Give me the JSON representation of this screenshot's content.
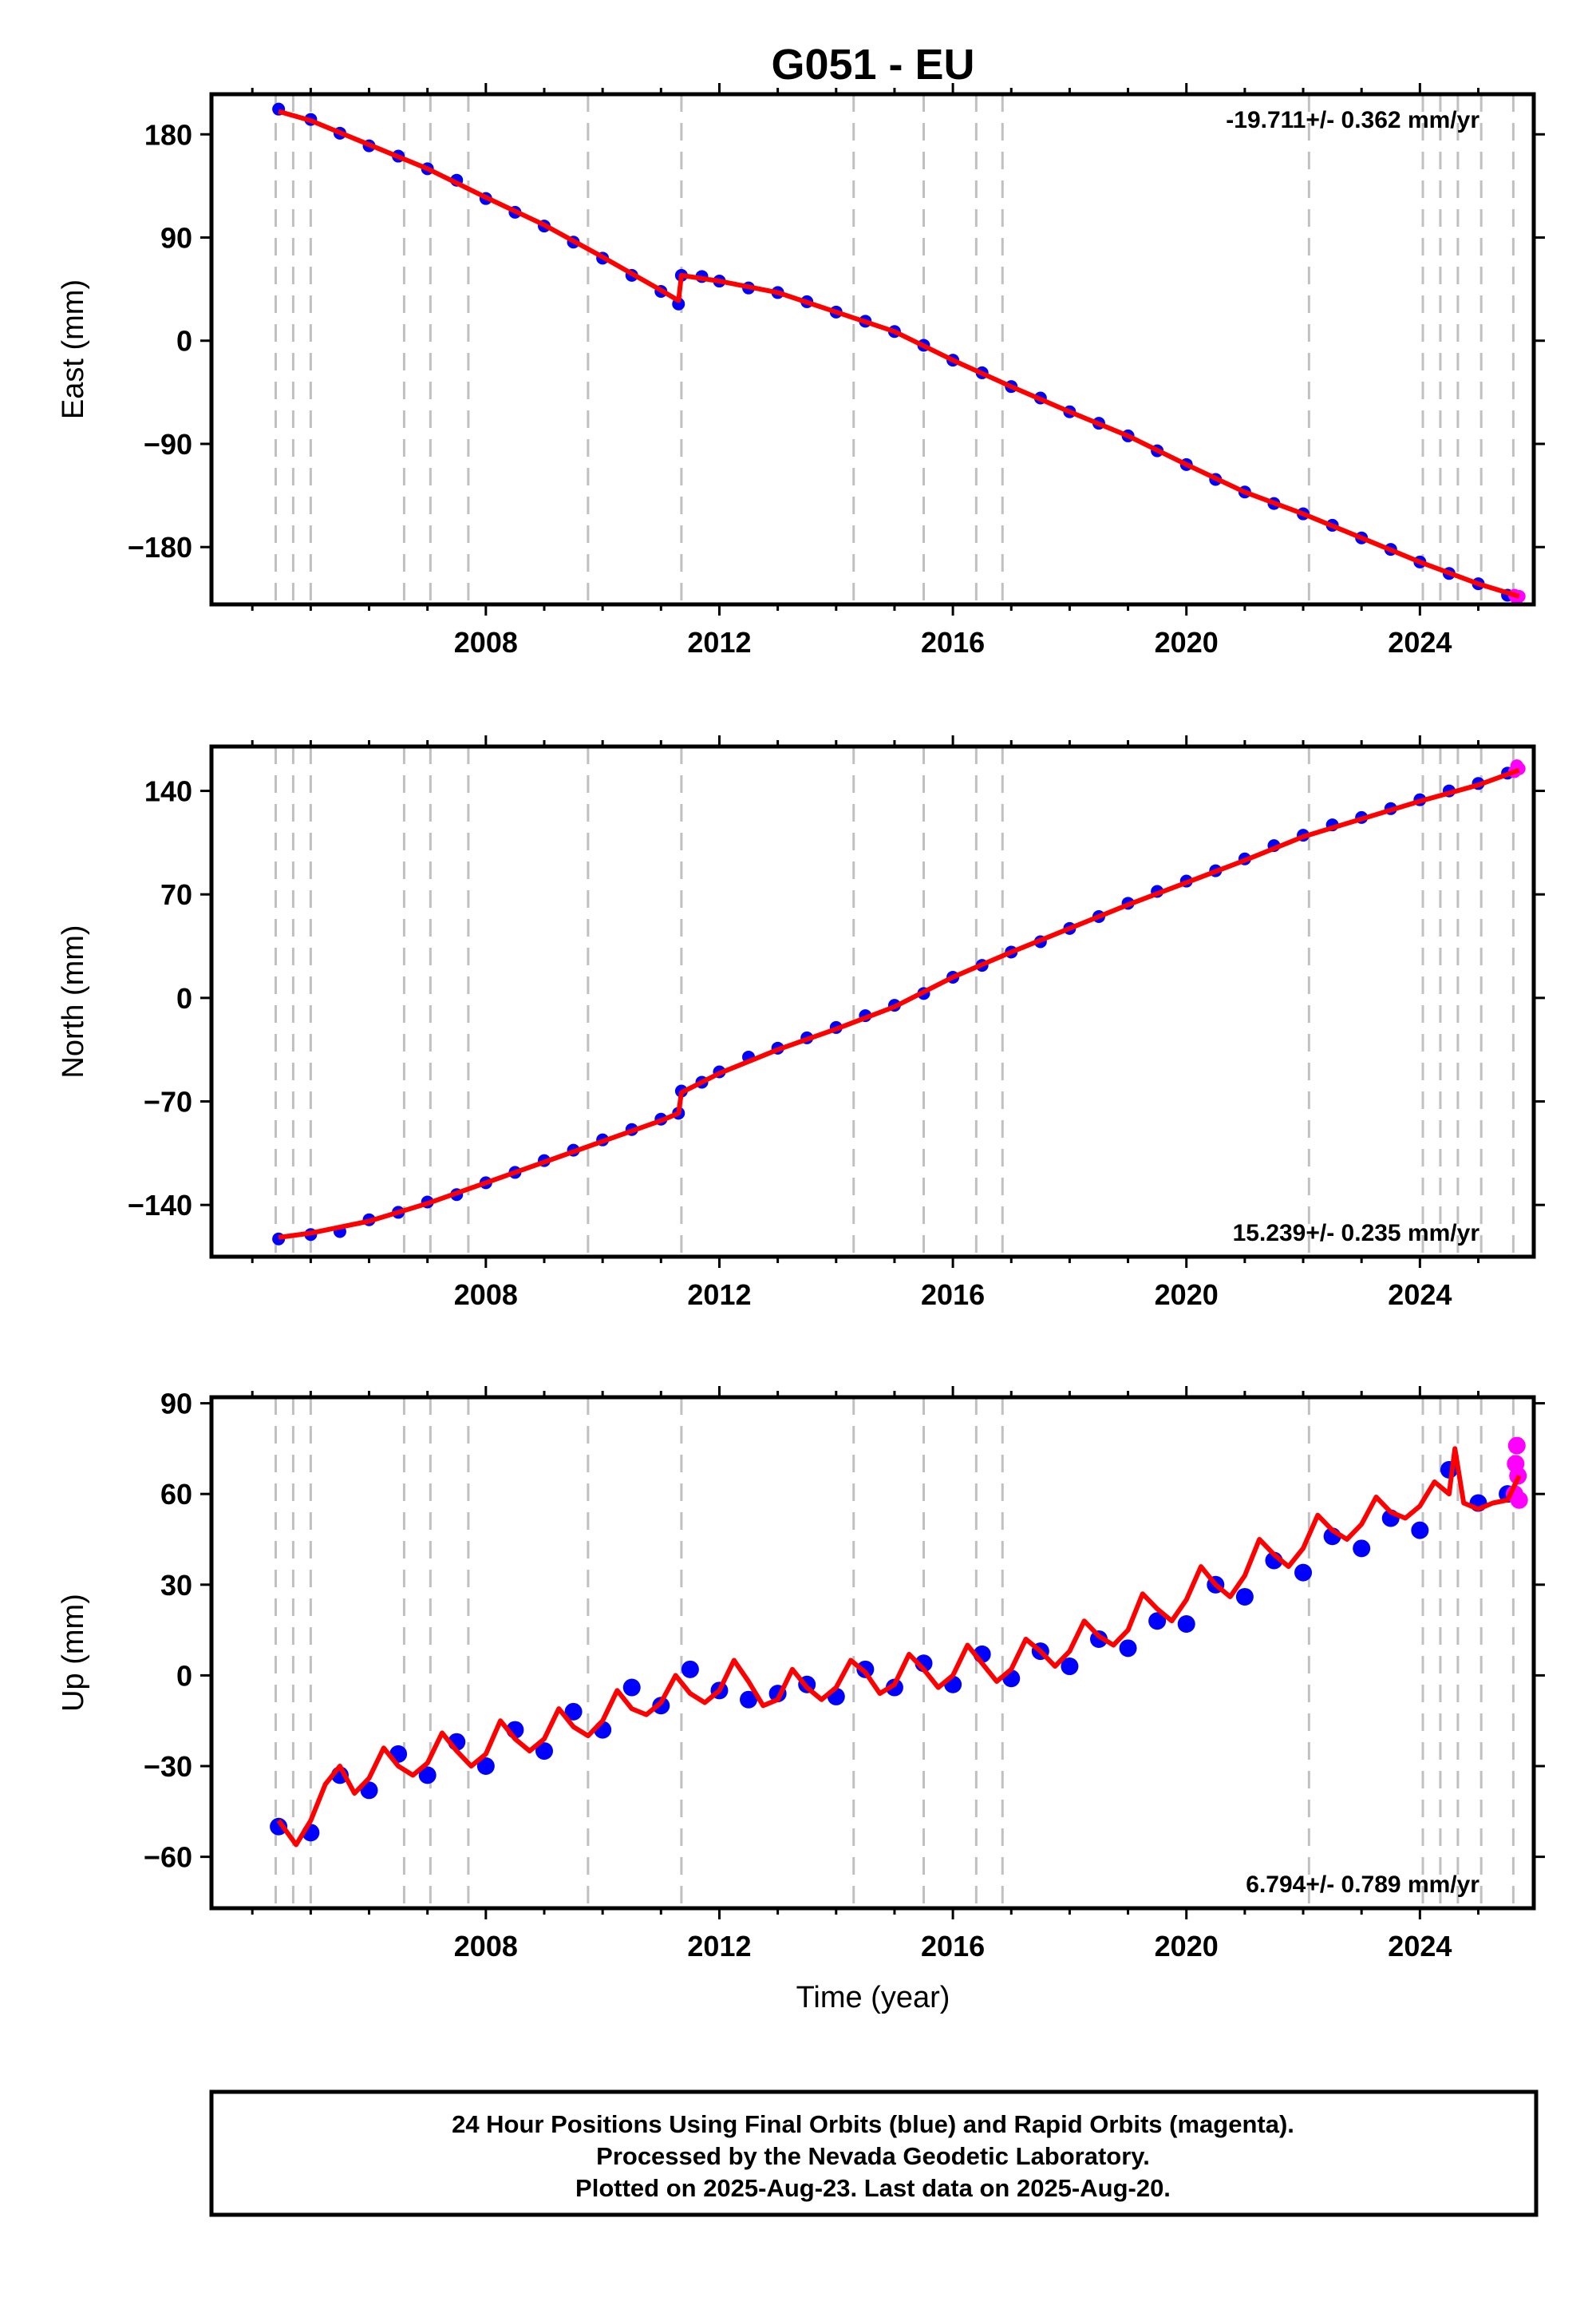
{
  "figure": {
    "title": "G051 - EU",
    "x_label": "Time (year)",
    "footer": [
      "24 Hour Positions Using Final Orbits (blue) and Rapid Orbits (magenta).",
      "Processed by the Nevada Geodetic Laboratory.",
      "Plotted on 2025-Aug-23. Last data on 2025-Aug-20."
    ]
  },
  "colors": {
    "final_orbit_points": "#0000ff",
    "rapid_orbit_points": "#ff00ff",
    "model_fit": "#ff0000",
    "event_lines": "#c0c0c0",
    "frame": "#000000"
  },
  "chart_data": [
    {
      "type": "scatter",
      "ylabel": "East (mm)",
      "xlabel": "",
      "xlim": [
        2003.3,
        2025.95
      ],
      "ylim": [
        -230,
        215
      ],
      "yticks": [
        180,
        90,
        0,
        -90,
        -180
      ],
      "xticks": [
        2008,
        2012,
        2016,
        2020,
        2024
      ],
      "rate_text": "-19.711+/- 0.362 mm/yr",
      "rate_position": "top-right",
      "grid": false,
      "event_lines": [
        2004.4,
        2004.7,
        2005.0,
        2006.6,
        2007.05,
        2007.7,
        2009.75,
        2011.35,
        2014.3,
        2015.5,
        2016.4,
        2016.85,
        2022.1,
        2024.05,
        2024.35,
        2024.65,
        2025.05,
        2025.6
      ],
      "series": [
        {
          "name": "Final Orbits",
          "color": "#0000ff",
          "x": [
            2004.45,
            2005.0,
            2005.5,
            2006.0,
            2006.5,
            2007.0,
            2007.5,
            2008.0,
            2008.5,
            2009.0,
            2009.5,
            2010.0,
            2010.5,
            2011.0,
            2011.3,
            2011.35,
            2011.7,
            2012.0,
            2012.5,
            2013.0,
            2013.5,
            2014.0,
            2014.5,
            2015.0,
            2015.5,
            2016.0,
            2016.5,
            2017.0,
            2017.5,
            2018.0,
            2018.5,
            2019.0,
            2019.5,
            2020.0,
            2020.5,
            2021.0,
            2021.5,
            2022.0,
            2022.5,
            2023.0,
            2023.5,
            2024.0,
            2024.5,
            2025.0,
            2025.5
          ],
          "y": [
            202,
            193,
            181,
            170,
            161,
            150,
            140,
            124,
            112,
            100,
            86,
            72,
            57,
            43,
            32,
            57,
            56,
            52,
            46,
            42,
            34,
            25,
            17,
            8,
            -4,
            -17,
            -28,
            -40,
            -50,
            -62,
            -72,
            -83,
            -96,
            -108,
            -121,
            -132,
            -142,
            -151,
            -161,
            -172,
            -182,
            -193,
            -203,
            -212,
            -222
          ]
        },
        {
          "name": "Rapid Orbits",
          "color": "#ff00ff",
          "x": [
            2025.62,
            2025.66,
            2025.7
          ],
          "y": [
            -222,
            -225,
            -223
          ]
        }
      ],
      "fit": {
        "color": "#ff0000",
        "x": [
          2004.45,
          2005.0,
          2006.0,
          2007.0,
          2008.0,
          2009.0,
          2010.0,
          2011.0,
          2011.3,
          2011.35,
          2012.0,
          2013.0,
          2014.0,
          2015.0,
          2016.0,
          2017.0,
          2018.0,
          2019.0,
          2020.0,
          2021.0,
          2022.0,
          2023.0,
          2024.0,
          2025.0,
          2025.7
        ],
        "y": [
          200,
          192,
          171,
          150,
          125,
          101,
          73,
          44,
          35,
          57,
          52,
          42,
          25,
          8,
          -17,
          -40,
          -62,
          -83,
          -108,
          -132,
          -151,
          -172,
          -193,
          -212,
          -223
        ]
      }
    },
    {
      "type": "scatter",
      "ylabel": "North (mm)",
      "xlabel": "",
      "xlim": [
        2003.3,
        2025.95
      ],
      "ylim": [
        -175,
        170
      ],
      "yticks": [
        140,
        70,
        0,
        -70,
        -140
      ],
      "xticks": [
        2008,
        2012,
        2016,
        2020,
        2024
      ],
      "rate_text": "15.239+/- 0.235 mm/yr",
      "rate_position": "bottom-right",
      "grid": false,
      "event_lines": [
        2004.4,
        2004.7,
        2005.0,
        2006.6,
        2007.05,
        2007.7,
        2009.75,
        2011.35,
        2014.3,
        2015.5,
        2016.4,
        2016.85,
        2022.1,
        2024.05,
        2024.35,
        2024.65,
        2025.05,
        2025.6
      ],
      "series": [
        {
          "name": "Final Orbits",
          "color": "#0000ff",
          "x": [
            2004.45,
            2005.0,
            2005.5,
            2006.0,
            2006.5,
            2007.0,
            2007.5,
            2008.0,
            2008.5,
            2009.0,
            2009.5,
            2010.0,
            2010.5,
            2011.0,
            2011.3,
            2011.35,
            2011.7,
            2012.0,
            2012.5,
            2013.0,
            2013.5,
            2014.0,
            2014.5,
            2015.0,
            2015.5,
            2016.0,
            2016.5,
            2017.0,
            2017.5,
            2018.0,
            2018.5,
            2019.0,
            2019.5,
            2020.0,
            2020.5,
            2021.0,
            2021.5,
            2022.0,
            2022.5,
            2023.0,
            2023.5,
            2024.0,
            2024.5,
            2025.0,
            2025.5
          ],
          "y": [
            -163,
            -160,
            -158,
            -150,
            -145,
            -138,
            -133,
            -125,
            -118,
            -110,
            -103,
            -96,
            -89,
            -82,
            -78,
            -63,
            -57,
            -50,
            -40,
            -34,
            -27,
            -20,
            -12,
            -5,
            3,
            14,
            22,
            31,
            38,
            47,
            55,
            64,
            72,
            79,
            86,
            94,
            103,
            110,
            117,
            122,
            128,
            134,
            140,
            145,
            152
          ]
        },
        {
          "name": "Rapid Orbits",
          "color": "#ff00ff",
          "x": [
            2025.62,
            2025.66,
            2025.7
          ],
          "y": [
            153,
            157,
            155
          ]
        }
      ],
      "fit": {
        "color": "#ff0000",
        "x": [
          2004.45,
          2005.0,
          2006.0,
          2007.0,
          2008.0,
          2009.0,
          2010.0,
          2011.0,
          2011.3,
          2011.35,
          2012.0,
          2013.0,
          2014.0,
          2015.0,
          2016.0,
          2017.0,
          2018.0,
          2019.0,
          2020.0,
          2021.0,
          2022.0,
          2023.0,
          2024.0,
          2025.0,
          2025.7
        ],
        "y": [
          -162,
          -159,
          -151,
          -139,
          -125,
          -111,
          -97,
          -83,
          -78,
          -64,
          -51,
          -35,
          -21,
          -6,
          14,
          31,
          47,
          63,
          78,
          93,
          109,
          121,
          133,
          144,
          154
        ]
      }
    },
    {
      "type": "scatter",
      "ylabel": "Up (mm)",
      "xlabel": "Time (year)",
      "xlim": [
        2003.3,
        2025.95
      ],
      "ylim": [
        -77,
        92
      ],
      "yticks": [
        90,
        60,
        30,
        0,
        -30,
        -60
      ],
      "xticks": [
        2008,
        2012,
        2016,
        2020,
        2024
      ],
      "rate_text": "6.794+/- 0.789 mm/yr",
      "rate_position": "bottom-right",
      "grid": false,
      "event_lines": [
        2004.4,
        2004.7,
        2005.0,
        2006.6,
        2007.05,
        2007.7,
        2009.75,
        2011.35,
        2014.3,
        2015.5,
        2016.4,
        2016.85,
        2022.1,
        2024.05,
        2024.35,
        2024.65,
        2025.05,
        2025.6
      ],
      "series": [
        {
          "name": "Final Orbits",
          "color": "#0000ff",
          "x": [
            2004.45,
            2005.0,
            2005.5,
            2006.0,
            2006.5,
            2007.0,
            2007.5,
            2008.0,
            2008.5,
            2009.0,
            2009.5,
            2010.0,
            2010.5,
            2011.0,
            2011.5,
            2012.0,
            2012.5,
            2013.0,
            2013.5,
            2014.0,
            2014.5,
            2015.0,
            2015.5,
            2016.0,
            2016.5,
            2017.0,
            2017.5,
            2018.0,
            2018.5,
            2019.0,
            2019.5,
            2020.0,
            2020.5,
            2021.0,
            2021.5,
            2022.0,
            2022.5,
            2023.0,
            2023.5,
            2024.0,
            2024.5,
            2025.0,
            2025.5
          ],
          "y": [
            -50,
            -52,
            -33,
            -38,
            -26,
            -33,
            -22,
            -30,
            -18,
            -25,
            -12,
            -18,
            -4,
            -10,
            2,
            -5,
            -8,
            -6,
            -3,
            -7,
            2,
            -4,
            4,
            -3,
            7,
            -1,
            8,
            3,
            12,
            9,
            18,
            17,
            30,
            26,
            38,
            34,
            46,
            42,
            52,
            48,
            68,
            57,
            60
          ]
        },
        {
          "name": "Rapid Orbits",
          "color": "#ff00ff",
          "x": [
            2025.62,
            2025.64,
            2025.66,
            2025.68,
            2025.7
          ],
          "y": [
            60,
            70,
            76,
            66,
            58
          ]
        }
      ],
      "fit": {
        "color": "#ff0000",
        "x": [
          2004.45,
          2004.75,
          2005.0,
          2005.25,
          2005.5,
          2005.75,
          2006.0,
          2006.25,
          2006.5,
          2006.75,
          2007.0,
          2007.25,
          2007.5,
          2007.75,
          2008.0,
          2008.25,
          2008.5,
          2008.75,
          2009.0,
          2009.25,
          2009.5,
          2009.75,
          2010.0,
          2010.25,
          2010.5,
          2010.75,
          2011.0,
          2011.25,
          2011.5,
          2011.75,
          2012.0,
          2012.25,
          2012.5,
          2012.75,
          2013.0,
          2013.25,
          2013.5,
          2013.75,
          2014.0,
          2014.25,
          2014.5,
          2014.75,
          2015.0,
          2015.25,
          2015.5,
          2015.75,
          2016.0,
          2016.25,
          2016.5,
          2016.75,
          2017.0,
          2017.25,
          2017.5,
          2017.75,
          2018.0,
          2018.25,
          2018.5,
          2018.75,
          2019.0,
          2019.25,
          2019.5,
          2019.75,
          2020.0,
          2020.25,
          2020.5,
          2020.75,
          2021.0,
          2021.25,
          2021.5,
          2021.75,
          2022.0,
          2022.25,
          2022.5,
          2022.75,
          2023.0,
          2023.25,
          2023.5,
          2023.75,
          2024.0,
          2024.25,
          2024.5,
          2024.6,
          2024.75,
          2025.0,
          2025.25,
          2025.5,
          2025.7
        ],
        "y": [
          -48,
          -56,
          -48,
          -36,
          -30,
          -39,
          -34,
          -24,
          -30,
          -33,
          -29,
          -19,
          -25,
          -30,
          -26,
          -15,
          -21,
          -25,
          -21,
          -11,
          -17,
          -20,
          -15,
          -5,
          -11,
          -13,
          -9,
          0,
          -6,
          -9,
          -5,
          5,
          -2,
          -10,
          -8,
          2,
          -4,
          -8,
          -4,
          5,
          1,
          -6,
          -3,
          7,
          2,
          -4,
          0,
          10,
          4,
          -2,
          2,
          12,
          8,
          3,
          8,
          18,
          13,
          10,
          15,
          27,
          22,
          18,
          25,
          36,
          30,
          26,
          33,
          45,
          40,
          36,
          42,
          53,
          48,
          45,
          50,
          59,
          54,
          52,
          56,
          64,
          60,
          75,
          57,
          55,
          57,
          58,
          66
        ]
      }
    }
  ]
}
